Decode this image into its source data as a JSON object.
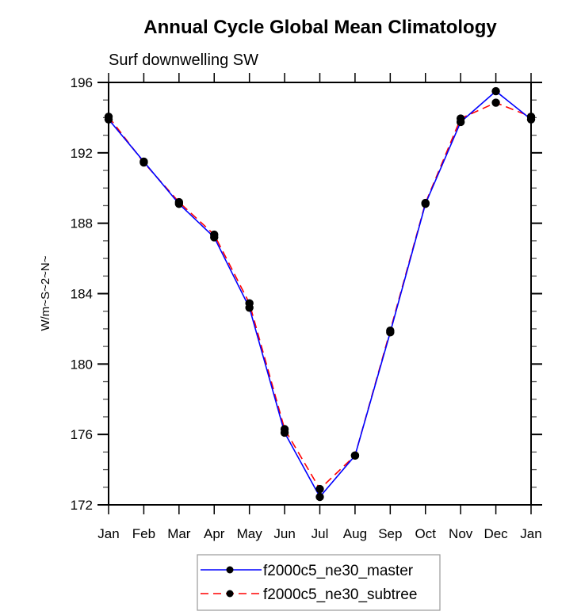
{
  "chart_data": {
    "type": "line",
    "title": "Annual Cycle Global Mean Climatology",
    "subtitle": "Surf downwelling SW",
    "xlabel": "",
    "ylabel": "W/m~S~2~N~",
    "categories": [
      "Jan",
      "Feb",
      "Mar",
      "Apr",
      "May",
      "Jun",
      "Jul",
      "Aug",
      "Sep",
      "Oct",
      "Nov",
      "Dec",
      "Jan"
    ],
    "ylim": [
      172,
      196
    ],
    "yticks": [
      172,
      176,
      180,
      184,
      188,
      192,
      196
    ],
    "yticks_minor_step": 1,
    "grid": false,
    "legend_position": "bottom-center",
    "series": [
      {
        "name": "f2000c5_ne30_master",
        "color": "#0000ff",
        "line_style": "solid",
        "marker": "filled-circle",
        "marker_color": "#000000",
        "values": [
          193.9,
          191.5,
          189.1,
          187.2,
          183.2,
          176.1,
          172.45,
          174.8,
          181.8,
          189.1,
          193.75,
          195.5,
          193.9
        ]
      },
      {
        "name": "f2000c5_ne30_subtree",
        "color": "#ff0000",
        "line_style": "dashed",
        "marker": "filled-circle",
        "marker_color": "#000000",
        "values": [
          194.05,
          191.45,
          189.2,
          187.35,
          183.45,
          176.3,
          172.9,
          174.8,
          181.9,
          189.15,
          193.95,
          194.85,
          194.05
        ]
      }
    ]
  }
}
